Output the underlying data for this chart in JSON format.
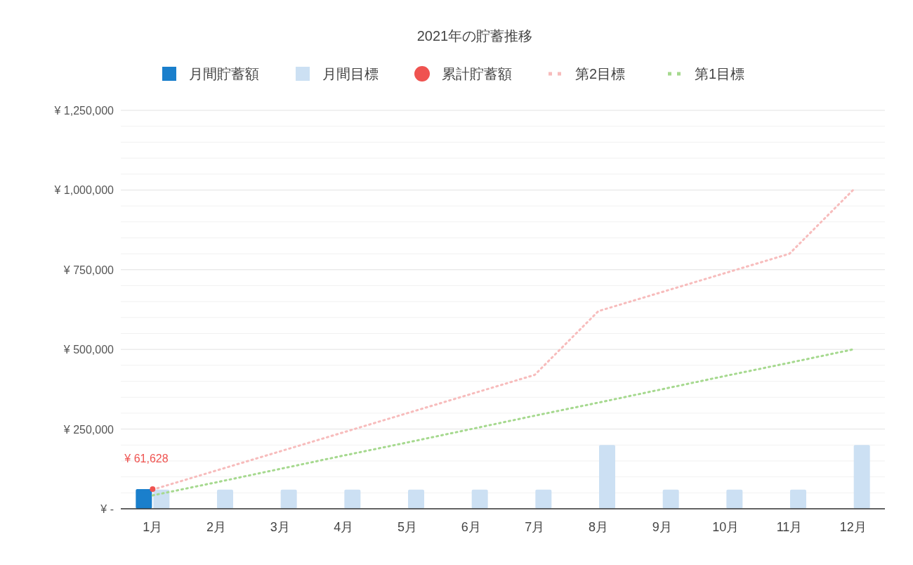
{
  "chart_data": {
    "type": "bar",
    "title": "2021年の貯蓄推移",
    "categories": [
      "1月",
      "2月",
      "3月",
      "4月",
      "5月",
      "6月",
      "7月",
      "8月",
      "9月",
      "10月",
      "11月",
      "12月"
    ],
    "series": [
      {
        "name": "月間貯蓄額",
        "color": "#1a7fcc",
        "values": [
          61628,
          null,
          null,
          null,
          null,
          null,
          null,
          null,
          null,
          null,
          null,
          null
        ]
      },
      {
        "name": "月間目標",
        "color": "#cce0f3",
        "values": [
          60000,
          60000,
          60000,
          60000,
          60000,
          60000,
          60000,
          200000,
          60000,
          60000,
          60000,
          200000
        ]
      },
      {
        "name": "累計貯蓄額",
        "type": "scatter",
        "color": "#ef5350",
        "marker": "circle",
        "values": [
          61628,
          null,
          null,
          null,
          null,
          null,
          null,
          null,
          null,
          null,
          null,
          null
        ],
        "value_labels": [
          "¥ 61,628",
          null,
          null,
          null,
          null,
          null,
          null,
          null,
          null,
          null,
          null,
          null
        ]
      },
      {
        "name": "第2目標",
        "type": "line",
        "color": "#f7bcbc",
        "line_style": "dotted",
        "values": [
          60000,
          120000,
          180000,
          240000,
          300000,
          360000,
          420000,
          620000,
          680000,
          740000,
          800000,
          1000000
        ]
      },
      {
        "name": "第1目標",
        "type": "line",
        "color": "#a6d98f",
        "line_style": "dotted",
        "values": [
          42000,
          83000,
          125000,
          167000,
          208000,
          250000,
          292000,
          333000,
          375000,
          417000,
          458000,
          500000
        ]
      }
    ],
    "ylim": [
      0,
      1250000
    ],
    "yticks": [
      {
        "value": 0,
        "label": "¥ -"
      },
      {
        "value": 50000,
        "label": null
      },
      {
        "value": 100000,
        "label": null
      },
      {
        "value": 150000,
        "label": null
      },
      {
        "value": 200000,
        "label": null
      },
      {
        "value": 250000,
        "label": "¥ 250,000"
      },
      {
        "value": 300000,
        "label": null
      },
      {
        "value": 350000,
        "label": null
      },
      {
        "value": 400000,
        "label": null
      },
      {
        "value": 450000,
        "label": null
      },
      {
        "value": 500000,
        "label": "¥ 500,000"
      },
      {
        "value": 550000,
        "label": null
      },
      {
        "value": 600000,
        "label": null
      },
      {
        "value": 650000,
        "label": null
      },
      {
        "value": 700000,
        "label": null
      },
      {
        "value": 750000,
        "label": "¥ 750,000"
      },
      {
        "value": 800000,
        "label": null
      },
      {
        "value": 850000,
        "label": null
      },
      {
        "value": 900000,
        "label": null
      },
      {
        "value": 950000,
        "label": null
      },
      {
        "value": 1000000,
        "label": "¥ 1,000,000"
      },
      {
        "value": 1050000,
        "label": null
      },
      {
        "value": 1100000,
        "label": null
      },
      {
        "value": 1150000,
        "label": null
      },
      {
        "value": 1200000,
        "label": null
      },
      {
        "value": 1250000,
        "label": "¥ 1,250,000"
      }
    ],
    "grid": "y",
    "legend": "top"
  }
}
